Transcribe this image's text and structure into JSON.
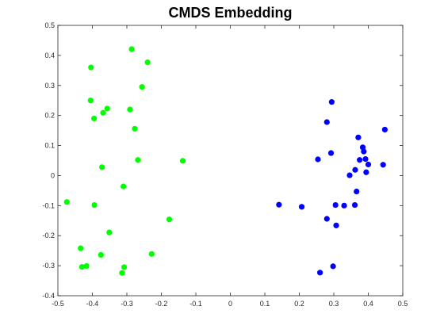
{
  "chart_data": {
    "type": "scatter",
    "title": "CMDS Embedding",
    "xlabel": "",
    "ylabel": "",
    "xlim": [
      -0.5,
      0.5
    ],
    "ylim": [
      -0.4,
      0.5
    ],
    "xticks": [
      "-0.5",
      "-0.4",
      "-0.3",
      "-0.2",
      "-0.1",
      "0",
      "0.1",
      "0.2",
      "0.3",
      "0.4",
      "0.5"
    ],
    "yticks": [
      "-0.4",
      "-0.3",
      "-0.2",
      "-0.1",
      "0",
      "0.1",
      "0.2",
      "0.3",
      "0.4",
      "0.5"
    ],
    "grid": false,
    "legend": false,
    "series": [
      {
        "color": "#00ff00",
        "points": [
          [
            -0.286,
            0.421
          ],
          [
            -0.24,
            0.377
          ],
          [
            -0.404,
            0.36
          ],
          [
            -0.256,
            0.295
          ],
          [
            -0.405,
            0.25
          ],
          [
            -0.357,
            0.223
          ],
          [
            -0.291,
            0.22
          ],
          [
            -0.369,
            0.209
          ],
          [
            -0.395,
            0.19
          ],
          [
            -0.277,
            0.156
          ],
          [
            -0.268,
            0.052
          ],
          [
            -0.138,
            0.049
          ],
          [
            -0.372,
            0.028
          ],
          [
            -0.31,
            -0.036
          ],
          [
            -0.474,
            -0.088
          ],
          [
            -0.394,
            -0.098
          ],
          [
            -0.177,
            -0.146
          ],
          [
            -0.351,
            -0.189
          ],
          [
            -0.228,
            -0.261
          ],
          [
            -0.375,
            -0.264
          ],
          [
            -0.434,
            -0.242
          ],
          [
            -0.417,
            -0.301
          ],
          [
            -0.43,
            -0.304
          ],
          [
            -0.308,
            -0.305
          ],
          [
            -0.314,
            -0.324
          ]
        ]
      },
      {
        "color": "#0000ff",
        "points": [
          [
            0.294,
            0.245
          ],
          [
            0.28,
            0.178
          ],
          [
            0.448,
            0.153
          ],
          [
            0.371,
            0.127
          ],
          [
            0.384,
            0.094
          ],
          [
            0.387,
            0.08
          ],
          [
            0.292,
            0.075
          ],
          [
            0.375,
            0.052
          ],
          [
            0.254,
            0.054
          ],
          [
            0.392,
            0.055
          ],
          [
            0.4,
            0.037
          ],
          [
            0.443,
            0.036
          ],
          [
            0.362,
            0.019
          ],
          [
            0.394,
            0.011
          ],
          [
            0.346,
            0.001
          ],
          [
            0.366,
            -0.053
          ],
          [
            0.141,
            -0.097
          ],
          [
            0.207,
            -0.104
          ],
          [
            0.305,
            -0.098
          ],
          [
            0.33,
            -0.1
          ],
          [
            0.361,
            -0.098
          ],
          [
            0.28,
            -0.144
          ],
          [
            0.307,
            -0.166
          ],
          [
            0.298,
            -0.302
          ],
          [
            0.26,
            -0.323
          ]
        ]
      }
    ]
  }
}
